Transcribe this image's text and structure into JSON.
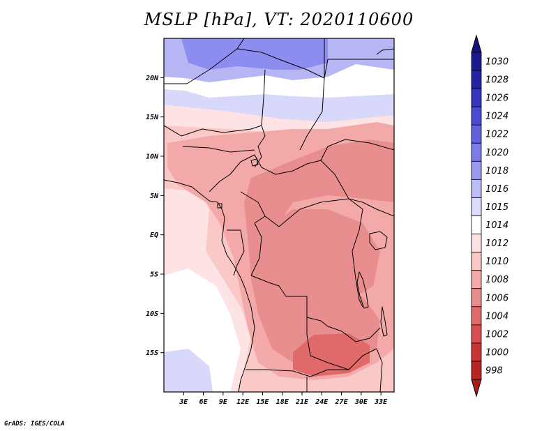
{
  "title": "MSLP [hPa], VT: 2020110600",
  "credit": "GrADS: IGES/COLA",
  "map": {
    "lon_range": [
      0,
      35
    ],
    "lat_range": [
      -20,
      25
    ],
    "lat_ticks": [
      {
        "value": 20,
        "label": "20N"
      },
      {
        "value": 15,
        "label": "15N"
      },
      {
        "value": 10,
        "label": "10N"
      },
      {
        "value": 5,
        "label": "5N"
      },
      {
        "value": 0,
        "label": "EQ"
      },
      {
        "value": -5,
        "label": "5S"
      },
      {
        "value": -10,
        "label": "10S"
      },
      {
        "value": -15,
        "label": "15S"
      }
    ],
    "lon_ticks": [
      {
        "value": 3,
        "label": "3E"
      },
      {
        "value": 6,
        "label": "6E"
      },
      {
        "value": 9,
        "label": "9E"
      },
      {
        "value": 12,
        "label": "12E"
      },
      {
        "value": 15,
        "label": "15E"
      },
      {
        "value": 18,
        "label": "18E"
      },
      {
        "value": 21,
        "label": "21E"
      },
      {
        "value": 24,
        "label": "24E"
      },
      {
        "value": 27,
        "label": "27E"
      },
      {
        "value": 30,
        "label": "30E"
      },
      {
        "value": 33,
        "label": "33E"
      }
    ]
  },
  "colorbar": {
    "levels": [
      {
        "label": "1030",
        "color": "#1a1a8c"
      },
      {
        "label": "1028",
        "color": "#2323a8"
      },
      {
        "label": "1026",
        "color": "#3434bf"
      },
      {
        "label": "1024",
        "color": "#4a4ad0"
      },
      {
        "label": "1022",
        "color": "#6262de"
      },
      {
        "label": "1020",
        "color": "#7c7ce8"
      },
      {
        "label": "1018",
        "color": "#9a9af0"
      },
      {
        "label": "1016",
        "color": "#bcbcf6"
      },
      {
        "label": "1015",
        "color": "#dcdcfb"
      },
      {
        "label": "1014",
        "color": "#ffffff"
      },
      {
        "label": "1012",
        "color": "#fde3e3"
      },
      {
        "label": "1010",
        "color": "#fbc8c8"
      },
      {
        "label": "1008",
        "color": "#f4a9a9"
      },
      {
        "label": "1006",
        "color": "#e98e8e"
      },
      {
        "label": "1004",
        "color": "#e06a6a"
      },
      {
        "label": "1002",
        "color": "#d84e4e"
      },
      {
        "label": "1000",
        "color": "#c93434"
      },
      {
        "label": "998",
        "color": "#b82424"
      }
    ],
    "top_arrow_color": "#14147a",
    "bottom_arrow_color": "#a81c1c"
  },
  "field_colors": {
    "blue_high": "#8d8df0",
    "blue_mid": "#b6b6f5",
    "blue_low": "#d8d8fa",
    "white": "#ffffff",
    "pink_light": "#fde3e3",
    "pink": "#fbc8c8",
    "salmon": "#f4a9a9",
    "rose": "#e98e8e",
    "red": "#e06a6a"
  }
}
